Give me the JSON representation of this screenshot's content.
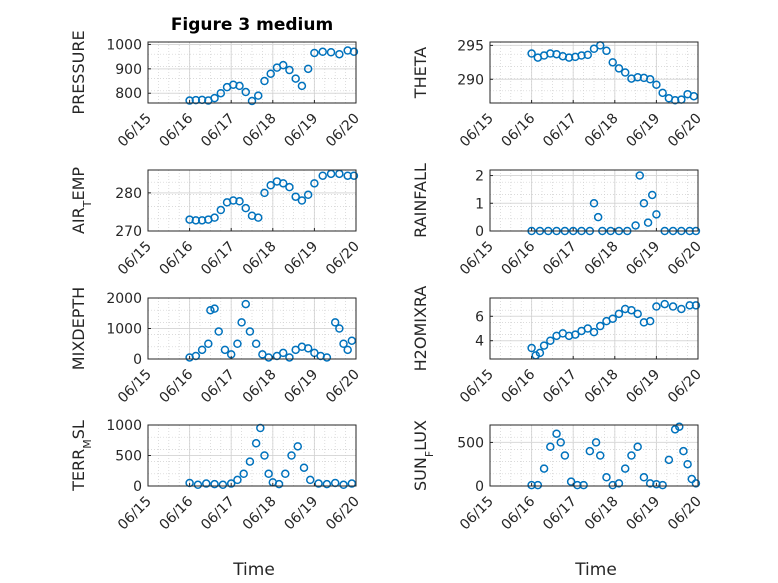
{
  "chart_data": [
    {
      "type": "scatter",
      "title": "Figure 3 medium",
      "ylabel": "PRESSURE",
      "ylim": [
        760,
        1010
      ],
      "yticks": [
        800,
        900,
        1000
      ],
      "xlim": [
        0,
        5
      ],
      "xticks": [
        0,
        1,
        2,
        3,
        4,
        5
      ],
      "xticklabels": [
        "06/15",
        "06/16",
        "06/17",
        "06/18",
        "06/19",
        "06/20"
      ],
      "grid": "on",
      "series": [
        {
          "color": "#0072BD",
          "data": [
            [
              1.0,
              770
            ],
            [
              1.15,
              772
            ],
            [
              1.3,
              773
            ],
            [
              1.45,
              770
            ],
            [
              1.6,
              780
            ],
            [
              1.75,
              800
            ],
            [
              1.9,
              825
            ],
            [
              2.05,
              835
            ],
            [
              2.2,
              830
            ],
            [
              2.35,
              805
            ],
            [
              2.5,
              768
            ],
            [
              2.65,
              790
            ],
            [
              2.8,
              850
            ],
            [
              2.95,
              880
            ],
            [
              3.1,
              905
            ],
            [
              3.25,
              915
            ],
            [
              3.4,
              895
            ],
            [
              3.55,
              860
            ],
            [
              3.7,
              830
            ],
            [
              3.85,
              900
            ],
            [
              4.0,
              965
            ],
            [
              4.2,
              970
            ],
            [
              4.4,
              968
            ],
            [
              4.6,
              960
            ],
            [
              4.8,
              975
            ],
            [
              4.95,
              970
            ]
          ]
        }
      ]
    },
    {
      "type": "scatter",
      "ylabel": "THETA",
      "ylim": [
        286.5,
        295.5
      ],
      "yticks": [
        290,
        295
      ],
      "xlim": [
        0,
        5
      ],
      "xticks": [
        0,
        1,
        2,
        3,
        4,
        5
      ],
      "xticklabels": [
        "06/15",
        "06/16",
        "06/17",
        "06/18",
        "06/19",
        "06/20"
      ],
      "grid": "on",
      "series": [
        {
          "color": "#0072BD",
          "data": [
            [
              1.0,
              293.8
            ],
            [
              1.15,
              293.2
            ],
            [
              1.3,
              293.5
            ],
            [
              1.45,
              293.8
            ],
            [
              1.6,
              293.7
            ],
            [
              1.75,
              293.4
            ],
            [
              1.9,
              293.2
            ],
            [
              2.05,
              293.3
            ],
            [
              2.2,
              293.5
            ],
            [
              2.35,
              293.6
            ],
            [
              2.5,
              294.5
            ],
            [
              2.65,
              295.0
            ],
            [
              2.8,
              294.2
            ],
            [
              2.95,
              292.5
            ],
            [
              3.1,
              291.6
            ],
            [
              3.25,
              291.0
            ],
            [
              3.4,
              290.1
            ],
            [
              3.55,
              290.3
            ],
            [
              3.7,
              290.2
            ],
            [
              3.85,
              290.0
            ],
            [
              4.0,
              289.2
            ],
            [
              4.15,
              288.0
            ],
            [
              4.3,
              287.2
            ],
            [
              4.45,
              286.9
            ],
            [
              4.6,
              287.0
            ],
            [
              4.75,
              287.8
            ],
            [
              4.9,
              287.5
            ]
          ]
        }
      ]
    },
    {
      "type": "scatter",
      "ylabel": "AIR_TEMP",
      "ylim": [
        270,
        286
      ],
      "yticks": [
        270,
        280
      ],
      "xlim": [
        0,
        5
      ],
      "xticks": [
        0,
        1,
        2,
        3,
        4,
        5
      ],
      "xticklabels": [
        "06/15",
        "06/16",
        "06/17",
        "06/18",
        "06/19",
        "06/20"
      ],
      "grid": "on",
      "series": [
        {
          "color": "#0072BD",
          "data": [
            [
              1.0,
              273
            ],
            [
              1.15,
              272.8
            ],
            [
              1.3,
              272.8
            ],
            [
              1.45,
              273
            ],
            [
              1.6,
              273.5
            ],
            [
              1.75,
              275.5
            ],
            [
              1.9,
              277.5
            ],
            [
              2.05,
              278
            ],
            [
              2.2,
              277.8
            ],
            [
              2.35,
              276
            ],
            [
              2.5,
              274
            ],
            [
              2.65,
              273.5
            ],
            [
              2.8,
              280
            ],
            [
              2.95,
              282
            ],
            [
              3.1,
              283
            ],
            [
              3.25,
              282.5
            ],
            [
              3.4,
              281.5
            ],
            [
              3.55,
              279
            ],
            [
              3.7,
              278
            ],
            [
              3.85,
              279.5
            ],
            [
              4.0,
              282.5
            ],
            [
              4.2,
              284.5
            ],
            [
              4.4,
              285
            ],
            [
              4.6,
              285
            ],
            [
              4.8,
              284.5
            ],
            [
              4.95,
              284.5
            ]
          ]
        }
      ]
    },
    {
      "type": "scatter",
      "ylabel": "RAINFALL",
      "ylim": [
        0,
        2.2
      ],
      "yticks": [
        0,
        1,
        2
      ],
      "xlim": [
        0,
        5
      ],
      "xticks": [
        0,
        1,
        2,
        3,
        4,
        5
      ],
      "xticklabels": [
        "06/15",
        "06/16",
        "06/17",
        "06/18",
        "06/19",
        "06/20"
      ],
      "grid": "on",
      "series": [
        {
          "color": "#0072BD",
          "data": [
            [
              1.0,
              0
            ],
            [
              1.2,
              0
            ],
            [
              1.4,
              0
            ],
            [
              1.6,
              0
            ],
            [
              1.8,
              0
            ],
            [
              2.0,
              0
            ],
            [
              2.2,
              0
            ],
            [
              2.4,
              0
            ],
            [
              2.5,
              1.0
            ],
            [
              2.6,
              0.5
            ],
            [
              2.7,
              0
            ],
            [
              2.9,
              0
            ],
            [
              3.1,
              0
            ],
            [
              3.3,
              0
            ],
            [
              3.5,
              0.2
            ],
            [
              3.6,
              2.0
            ],
            [
              3.7,
              1.0
            ],
            [
              3.8,
              0.3
            ],
            [
              3.9,
              1.3
            ],
            [
              4.0,
              0.6
            ],
            [
              4.2,
              0
            ],
            [
              4.4,
              0
            ],
            [
              4.6,
              0
            ],
            [
              4.8,
              0
            ],
            [
              4.95,
              0
            ]
          ]
        }
      ]
    },
    {
      "type": "scatter",
      "ylabel": "MIXDEPTH",
      "ylim": [
        0,
        2000
      ],
      "yticks": [
        0,
        1000,
        2000
      ],
      "xlim": [
        0,
        5
      ],
      "xticks": [
        0,
        1,
        2,
        3,
        4,
        5
      ],
      "xticklabels": [
        "06/15",
        "06/16",
        "06/17",
        "06/18",
        "06/19",
        "06/20"
      ],
      "grid": "on",
      "series": [
        {
          "color": "#0072BD",
          "data": [
            [
              1.0,
              50
            ],
            [
              1.15,
              100
            ],
            [
              1.3,
              300
            ],
            [
              1.45,
              500
            ],
            [
              1.5,
              1600
            ],
            [
              1.6,
              1650
            ],
            [
              1.7,
              900
            ],
            [
              1.85,
              300
            ],
            [
              2.0,
              150
            ],
            [
              2.15,
              500
            ],
            [
              2.25,
              1200
            ],
            [
              2.35,
              1800
            ],
            [
              2.45,
              900
            ],
            [
              2.6,
              500
            ],
            [
              2.75,
              150
            ],
            [
              2.9,
              50
            ],
            [
              3.1,
              100
            ],
            [
              3.25,
              200
            ],
            [
              3.4,
              50
            ],
            [
              3.55,
              300
            ],
            [
              3.7,
              400
            ],
            [
              3.85,
              350
            ],
            [
              4.0,
              200
            ],
            [
              4.15,
              100
            ],
            [
              4.3,
              50
            ],
            [
              4.5,
              1200
            ],
            [
              4.6,
              1000
            ],
            [
              4.7,
              500
            ],
            [
              4.8,
              300
            ],
            [
              4.9,
              600
            ]
          ]
        }
      ]
    },
    {
      "type": "scatter",
      "ylabel": "H2OMIXRA",
      "ylim": [
        2.5,
        7.5
      ],
      "yticks": [
        4,
        6
      ],
      "xlim": [
        0,
        5
      ],
      "xticks": [
        0,
        1,
        2,
        3,
        4,
        5
      ],
      "xticklabels": [
        "06/15",
        "06/16",
        "06/17",
        "06/18",
        "06/19",
        "06/20"
      ],
      "grid": "on",
      "series": [
        {
          "color": "#0072BD",
          "data": [
            [
              1.0,
              3.4
            ],
            [
              1.1,
              2.8
            ],
            [
              1.2,
              3.0
            ],
            [
              1.3,
              3.6
            ],
            [
              1.45,
              4.0
            ],
            [
              1.6,
              4.4
            ],
            [
              1.75,
              4.6
            ],
            [
              1.9,
              4.4
            ],
            [
              2.05,
              4.5
            ],
            [
              2.2,
              4.8
            ],
            [
              2.35,
              5.0
            ],
            [
              2.5,
              4.7
            ],
            [
              2.65,
              5.2
            ],
            [
              2.8,
              5.6
            ],
            [
              2.95,
              5.8
            ],
            [
              3.1,
              6.2
            ],
            [
              3.25,
              6.6
            ],
            [
              3.4,
              6.5
            ],
            [
              3.55,
              6.2
            ],
            [
              3.7,
              5.5
            ],
            [
              3.85,
              5.6
            ],
            [
              4.0,
              6.8
            ],
            [
              4.2,
              7.0
            ],
            [
              4.4,
              6.8
            ],
            [
              4.6,
              6.6
            ],
            [
              4.8,
              6.9
            ],
            [
              4.95,
              6.9
            ]
          ]
        }
      ]
    },
    {
      "type": "scatter",
      "ylabel": "TERR_MSL",
      "ylim": [
        0,
        1000
      ],
      "yticks": [
        0,
        500,
        1000
      ],
      "xlim": [
        0,
        5
      ],
      "xticks": [
        0,
        1,
        2,
        3,
        4,
        5
      ],
      "xticklabels": [
        "06/15",
        "06/16",
        "06/17",
        "06/18",
        "06/19",
        "06/20"
      ],
      "grid": "on",
      "xlabel": "Time",
      "series": [
        {
          "color": "#0072BD",
          "data": [
            [
              1.0,
              50
            ],
            [
              1.2,
              20
            ],
            [
              1.4,
              40
            ],
            [
              1.6,
              30
            ],
            [
              1.8,
              20
            ],
            [
              2.0,
              40
            ],
            [
              2.15,
              100
            ],
            [
              2.3,
              200
            ],
            [
              2.45,
              400
            ],
            [
              2.6,
              700
            ],
            [
              2.7,
              950
            ],
            [
              2.8,
              500
            ],
            [
              2.9,
              200
            ],
            [
              3.0,
              60
            ],
            [
              3.15,
              30
            ],
            [
              3.3,
              200
            ],
            [
              3.45,
              500
            ],
            [
              3.6,
              650
            ],
            [
              3.75,
              300
            ],
            [
              3.9,
              100
            ],
            [
              4.1,
              40
            ],
            [
              4.3,
              30
            ],
            [
              4.5,
              50
            ],
            [
              4.7,
              20
            ],
            [
              4.9,
              40
            ]
          ]
        }
      ]
    },
    {
      "type": "scatter",
      "ylabel": "SUN_FLUX",
      "ylim": [
        0,
        700
      ],
      "yticks": [
        0,
        500
      ],
      "xlim": [
        0,
        5
      ],
      "xticks": [
        0,
        1,
        2,
        3,
        4,
        5
      ],
      "xticklabels": [
        "06/15",
        "06/16",
        "06/17",
        "06/18",
        "06/19",
        "06/20"
      ],
      "grid": "on",
      "xlabel": "Time",
      "series": [
        {
          "color": "#0072BD",
          "data": [
            [
              1.0,
              10
            ],
            [
              1.15,
              10
            ],
            [
              1.3,
              200
            ],
            [
              1.45,
              450
            ],
            [
              1.6,
              600
            ],
            [
              1.7,
              500
            ],
            [
              1.8,
              350
            ],
            [
              1.95,
              50
            ],
            [
              2.1,
              10
            ],
            [
              2.25,
              10
            ],
            [
              2.4,
              400
            ],
            [
              2.55,
              500
            ],
            [
              2.65,
              350
            ],
            [
              2.8,
              100
            ],
            [
              2.95,
              10
            ],
            [
              3.1,
              30
            ],
            [
              3.25,
              200
            ],
            [
              3.4,
              350
            ],
            [
              3.55,
              450
            ],
            [
              3.7,
              100
            ],
            [
              3.85,
              30
            ],
            [
              4.0,
              20
            ],
            [
              4.15,
              10
            ],
            [
              4.3,
              300
            ],
            [
              4.45,
              650
            ],
            [
              4.55,
              680
            ],
            [
              4.65,
              400
            ],
            [
              4.75,
              250
            ],
            [
              4.85,
              80
            ],
            [
              4.95,
              30
            ]
          ]
        }
      ]
    }
  ]
}
